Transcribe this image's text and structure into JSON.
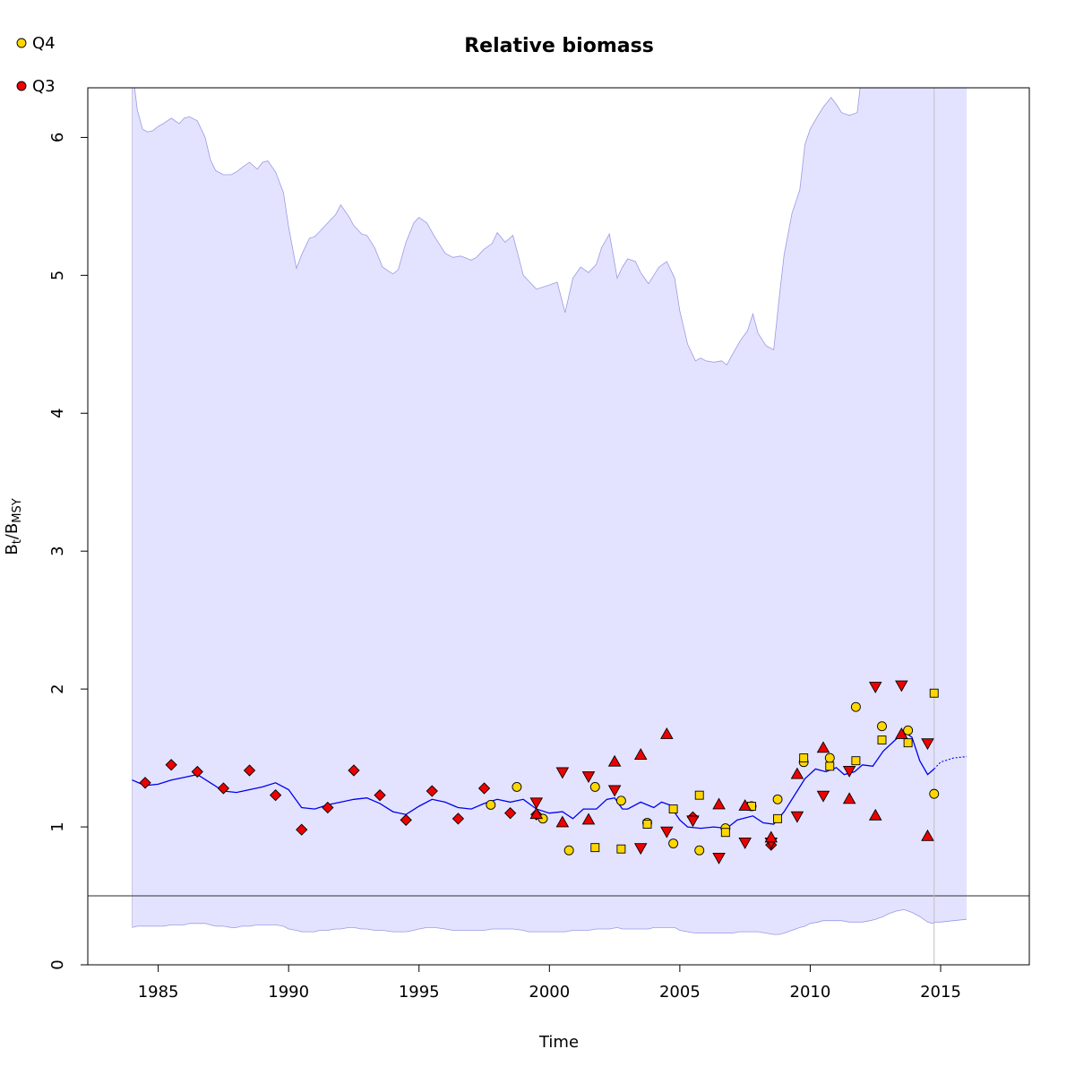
{
  "chart_data": {
    "type": "scatter",
    "title": "Relative biomass",
    "xlabel": "Time",
    "ylabel": {
      "main": "B",
      "sub1": "t",
      "sep": "/B",
      "sub2": "MSY"
    },
    "xlim": [
      1982.3,
      2018.4
    ],
    "ylim": [
      0,
      6.36
    ],
    "xticks": [
      1985,
      1990,
      1995,
      2000,
      2005,
      2010,
      2015
    ],
    "yticks": [
      0,
      1,
      2,
      3,
      4,
      5,
      6
    ],
    "reference_line": 0.5,
    "last_obs_year": 2014.75,
    "colors": {
      "band": "#e3e3ff",
      "band_edge": "#9a9ae6",
      "line": "#0000ee",
      "q4_fill": "#ffd700",
      "q3_fill": "#ee0000",
      "ref_line": "#555555",
      "vline": "#c0c0c0"
    },
    "legend": {
      "placement": "top-left",
      "entries": [
        {
          "label": "Q4",
          "color": "#ffd700"
        },
        {
          "label": "Q3",
          "color": "#ee0000"
        }
      ]
    },
    "confidence_band": {
      "x": [
        1984.0,
        1984.2,
        1984.4,
        1984.6,
        1984.8,
        1985.0,
        1985.2,
        1985.5,
        1985.8,
        1986.0,
        1986.2,
        1986.5,
        1986.8,
        1987.0,
        1987.2,
        1987.5,
        1987.8,
        1988.0,
        1988.2,
        1988.5,
        1988.8,
        1989.0,
        1989.2,
        1989.5,
        1989.8,
        1990.0,
        1990.3,
        1990.5,
        1990.8,
        1991.0,
        1991.2,
        1991.5,
        1991.8,
        1992.0,
        1992.3,
        1992.5,
        1992.8,
        1993.0,
        1993.3,
        1993.6,
        1994.0,
        1994.2,
        1994.5,
        1994.8,
        1995.0,
        1995.3,
        1995.6,
        1996.0,
        1996.3,
        1996.6,
        1997.0,
        1997.2,
        1997.5,
        1997.8,
        1998.0,
        1998.3,
        1998.6,
        1999.0,
        1999.2,
        1999.5,
        2000.0,
        2000.3,
        2000.6,
        2000.9,
        2001.2,
        2001.5,
        2001.8,
        2002.0,
        2002.3,
        2002.6,
        2002.8,
        2003.0,
        2003.3,
        2003.5,
        2003.8,
        2004.0,
        2004.2,
        2004.5,
        2004.8,
        2005.0,
        2005.3,
        2005.6,
        2005.8,
        2006.0,
        2006.3,
        2006.6,
        2006.8,
        2007.0,
        2007.3,
        2007.6,
        2007.8,
        2008.0,
        2008.3,
        2008.6,
        2008.8,
        2009.0,
        2009.3,
        2009.6,
        2009.8,
        2010.0,
        2010.3,
        2010.5,
        2010.8,
        2011.0,
        2011.2,
        2011.5,
        2011.8,
        2012.0,
        2012.3,
        2012.5,
        2012.8,
        2013.0,
        2013.3,
        2013.6,
        2013.9,
        2014.2,
        2014.5,
        2014.7,
        2014.8,
        2015.0,
        2015.5,
        2016.0
      ],
      "upper": [
        6.5,
        6.2,
        6.06,
        6.04,
        6.05,
        6.08,
        6.1,
        6.14,
        6.1,
        6.14,
        6.15,
        6.12,
        6.0,
        5.84,
        5.76,
        5.73,
        5.73,
        5.75,
        5.78,
        5.82,
        5.77,
        5.82,
        5.83,
        5.75,
        5.6,
        5.35,
        5.05,
        5.15,
        5.27,
        5.28,
        5.32,
        5.38,
        5.44,
        5.51,
        5.43,
        5.36,
        5.3,
        5.29,
        5.2,
        5.06,
        5.01,
        5.04,
        5.24,
        5.38,
        5.42,
        5.38,
        5.28,
        5.16,
        5.13,
        5.14,
        5.11,
        5.13,
        5.19,
        5.23,
        5.31,
        5.24,
        5.29,
        5.0,
        4.96,
        4.9,
        4.93,
        4.95,
        4.73,
        4.98,
        5.06,
        5.02,
        5.08,
        5.2,
        5.3,
        4.98,
        5.06,
        5.12,
        5.1,
        5.02,
        4.94,
        5.0,
        5.06,
        5.1,
        4.98,
        4.74,
        4.5,
        4.38,
        4.4,
        4.38,
        4.37,
        4.38,
        4.35,
        4.42,
        4.52,
        4.6,
        4.72,
        4.58,
        4.49,
        4.46,
        4.82,
        5.15,
        5.45,
        5.62,
        5.95,
        6.06,
        6.16,
        6.22,
        6.29,
        6.24,
        6.18,
        6.16,
        6.18,
        6.5,
        6.5,
        6.5,
        6.5,
        6.5,
        6.5,
        6.5,
        6.5,
        6.5,
        6.5,
        6.5,
        6.5,
        6.5,
        6.5,
        6.5
      ],
      "lower": [
        0.27,
        0.28,
        0.28,
        0.28,
        0.28,
        0.28,
        0.28,
        0.29,
        0.29,
        0.29,
        0.3,
        0.3,
        0.3,
        0.29,
        0.28,
        0.28,
        0.27,
        0.27,
        0.28,
        0.28,
        0.29,
        0.29,
        0.29,
        0.29,
        0.28,
        0.26,
        0.25,
        0.24,
        0.24,
        0.24,
        0.25,
        0.25,
        0.26,
        0.26,
        0.27,
        0.27,
        0.26,
        0.26,
        0.25,
        0.25,
        0.24,
        0.24,
        0.24,
        0.25,
        0.26,
        0.27,
        0.27,
        0.26,
        0.25,
        0.25,
        0.25,
        0.25,
        0.25,
        0.26,
        0.26,
        0.26,
        0.26,
        0.25,
        0.24,
        0.24,
        0.24,
        0.24,
        0.24,
        0.25,
        0.25,
        0.25,
        0.26,
        0.26,
        0.26,
        0.27,
        0.26,
        0.26,
        0.26,
        0.26,
        0.26,
        0.27,
        0.27,
        0.27,
        0.27,
        0.25,
        0.24,
        0.23,
        0.23,
        0.23,
        0.23,
        0.23,
        0.23,
        0.23,
        0.24,
        0.24,
        0.24,
        0.24,
        0.23,
        0.22,
        0.22,
        0.23,
        0.25,
        0.27,
        0.28,
        0.3,
        0.31,
        0.32,
        0.32,
        0.32,
        0.32,
        0.31,
        0.31,
        0.31,
        0.32,
        0.33,
        0.35,
        0.37,
        0.39,
        0.4,
        0.38,
        0.35,
        0.31,
        0.3,
        0.31,
        0.31,
        0.32,
        0.33
      ]
    },
    "estimate_line": {
      "x": [
        1984.0,
        1984.5,
        1985.0,
        1985.5,
        1986.0,
        1986.5,
        1987.0,
        1987.5,
        1988.0,
        1988.5,
        1989.0,
        1989.5,
        1990.0,
        1990.5,
        1991.0,
        1991.5,
        1992.0,
        1992.5,
        1993.0,
        1993.5,
        1994.0,
        1994.5,
        1995.0,
        1995.5,
        1996.0,
        1996.5,
        1997.0,
        1997.5,
        1998.0,
        1998.5,
        1999.0,
        1999.5,
        2000.0,
        2000.5,
        2000.9,
        2001.3,
        2001.8,
        2002.2,
        2002.5,
        2002.8,
        2003.0,
        2003.5,
        2004.0,
        2004.3,
        2004.6,
        2005.0,
        2005.3,
        2005.8,
        2006.3,
        2006.8,
        2007.2,
        2007.8,
        2008.2,
        2008.6,
        2009.0,
        2009.5,
        2009.8,
        2010.2,
        2010.6,
        2011.0,
        2011.3,
        2011.7,
        2012.0,
        2012.4,
        2012.8,
        2013.2,
        2013.6,
        2013.9,
        2014.2,
        2014.5,
        2014.75
      ],
      "y": [
        1.34,
        1.3,
        1.31,
        1.34,
        1.36,
        1.38,
        1.32,
        1.26,
        1.25,
        1.27,
        1.29,
        1.32,
        1.27,
        1.14,
        1.13,
        1.16,
        1.18,
        1.2,
        1.21,
        1.17,
        1.11,
        1.09,
        1.15,
        1.2,
        1.18,
        1.14,
        1.13,
        1.17,
        1.2,
        1.18,
        1.2,
        1.13,
        1.1,
        1.11,
        1.06,
        1.13,
        1.13,
        1.2,
        1.21,
        1.13,
        1.13,
        1.18,
        1.14,
        1.18,
        1.16,
        1.05,
        1.0,
        0.99,
        1.0,
        0.99,
        1.05,
        1.08,
        1.03,
        1.02,
        1.11,
        1.26,
        1.35,
        1.42,
        1.4,
        1.43,
        1.38,
        1.4,
        1.45,
        1.44,
        1.55,
        1.62,
        1.69,
        1.65,
        1.48,
        1.38,
        1.42
      ],
      "projection_x": [
        2014.75,
        2015.0,
        2015.5,
        2016.0
      ],
      "projection_y": [
        1.42,
        1.47,
        1.5,
        1.51
      ]
    },
    "series": [
      {
        "name": "Q4",
        "shape": "circle",
        "fill": "#ffd700",
        "points": [
          [
            1997.75,
            1.16
          ],
          [
            1998.75,
            1.29
          ],
          [
            1999.75,
            1.06
          ],
          [
            2000.75,
            0.83
          ],
          [
            2001.75,
            1.29
          ],
          [
            2002.75,
            1.19
          ],
          [
            2003.75,
            1.03
          ],
          [
            2004.75,
            0.88
          ],
          [
            2005.75,
            0.83
          ],
          [
            2006.75,
            0.99
          ],
          [
            2007.75,
            1.15
          ],
          [
            2008.75,
            1.2
          ],
          [
            2009.75,
            1.47
          ],
          [
            2010.75,
            1.5
          ],
          [
            2011.75,
            1.87
          ],
          [
            2012.75,
            1.73
          ],
          [
            2013.75,
            1.7
          ],
          [
            2014.75,
            1.24
          ]
        ]
      },
      {
        "name": "",
        "shape": "square",
        "fill": "#ffd700",
        "points": [
          [
            2001.75,
            0.85
          ],
          [
            2002.75,
            0.84
          ],
          [
            2003.75,
            1.02
          ],
          [
            2004.75,
            1.13
          ],
          [
            2005.75,
            1.23
          ],
          [
            2006.75,
            0.96
          ],
          [
            2007.75,
            1.15
          ],
          [
            2008.75,
            1.06
          ],
          [
            2009.75,
            1.5
          ],
          [
            2010.75,
            1.44
          ],
          [
            2011.75,
            1.48
          ],
          [
            2012.75,
            1.63
          ],
          [
            2013.75,
            1.61
          ],
          [
            2014.75,
            1.97
          ]
        ]
      },
      {
        "name": "Q3",
        "shape": "diamond",
        "fill": "#ee0000",
        "points": [
          [
            1984.5,
            1.32
          ],
          [
            1985.5,
            1.45
          ],
          [
            1986.5,
            1.4
          ],
          [
            1987.5,
            1.28
          ],
          [
            1988.5,
            1.41
          ],
          [
            1989.5,
            1.23
          ],
          [
            1990.5,
            0.98
          ],
          [
            1991.5,
            1.14
          ],
          [
            1992.5,
            1.41
          ],
          [
            1993.5,
            1.23
          ],
          [
            1994.5,
            1.05
          ],
          [
            1995.5,
            1.26
          ],
          [
            1996.5,
            1.06
          ],
          [
            1997.5,
            1.28
          ],
          [
            1998.5,
            1.1
          ],
          [
            1999.5,
            1.09
          ],
          [
            2005.5,
            1.07
          ],
          [
            2008.5,
            0.87
          ]
        ]
      },
      {
        "name": "",
        "shape": "triangle-down",
        "fill": "#ee0000",
        "points": [
          [
            1999.5,
            1.18
          ],
          [
            2000.5,
            1.4
          ],
          [
            2001.5,
            1.37
          ],
          [
            2002.5,
            1.27
          ],
          [
            2003.5,
            0.85
          ],
          [
            2004.5,
            0.97
          ],
          [
            2005.5,
            1.05
          ],
          [
            2006.5,
            0.78
          ],
          [
            2007.5,
            0.89
          ],
          [
            2008.5,
            0.89
          ],
          [
            2009.5,
            1.08
          ],
          [
            2010.5,
            1.23
          ],
          [
            2011.5,
            1.41
          ],
          [
            2012.5,
            2.02
          ],
          [
            2013.5,
            2.03
          ],
          [
            2014.5,
            1.61
          ]
        ]
      },
      {
        "name": "",
        "shape": "triangle-up",
        "fill": "#ee0000",
        "points": [
          [
            1999.5,
            1.09
          ],
          [
            2000.5,
            1.03
          ],
          [
            2001.5,
            1.05
          ],
          [
            2002.5,
            1.47
          ],
          [
            2003.5,
            1.52
          ],
          [
            2004.5,
            1.67
          ],
          [
            2006.5,
            1.16
          ],
          [
            2007.5,
            1.15
          ],
          [
            2008.5,
            0.92
          ],
          [
            2009.5,
            1.38
          ],
          [
            2010.5,
            1.57
          ],
          [
            2011.5,
            1.2
          ],
          [
            2012.5,
            1.08
          ],
          [
            2013.5,
            1.67
          ],
          [
            2014.5,
            0.93
          ]
        ]
      }
    ]
  }
}
